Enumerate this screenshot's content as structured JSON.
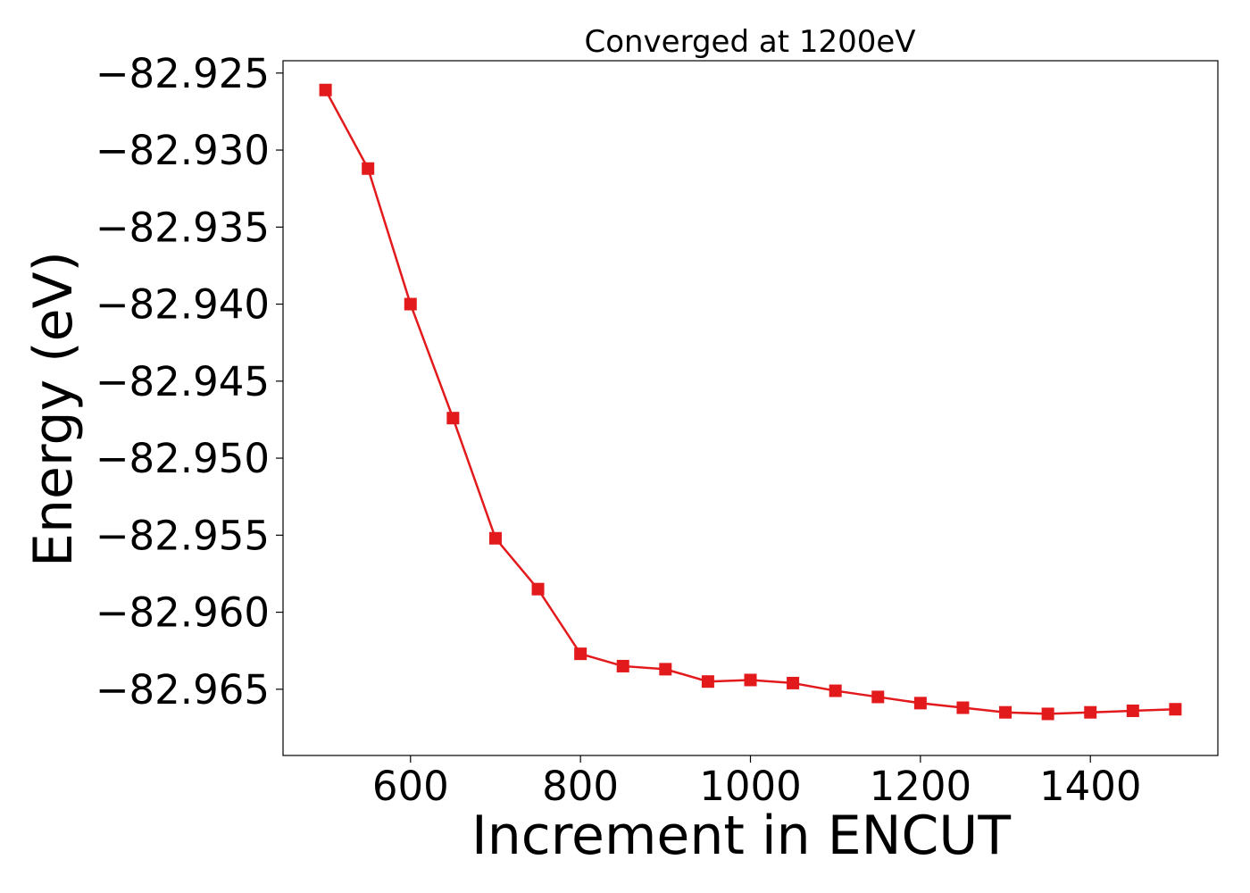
{
  "chart_data": {
    "type": "line",
    "title": "Converged at 1200eV",
    "xlabel": "Increment in ENCUT",
    "ylabel": "Energy (eV)",
    "xlim": [
      450,
      1550
    ],
    "ylim": [
      -82.9693,
      -82.9242
    ],
    "xticks": [
      600,
      800,
      1000,
      1200,
      1400
    ],
    "yticks": [
      -82.925,
      -82.93,
      -82.935,
      -82.94,
      -82.945,
      -82.95,
      -82.955,
      -82.96,
      -82.965
    ],
    "ytick_labels": [
      "−82.925",
      "−82.930",
      "−82.935",
      "−82.940",
      "−82.945",
      "−82.950",
      "−82.955",
      "−82.960",
      "−82.965"
    ],
    "grid": false,
    "series": [
      {
        "color": "#e31a1c",
        "marker": "square",
        "x": [
          500,
          550,
          600,
          650,
          700,
          750,
          800,
          850,
          900,
          950,
          1000,
          1050,
          1100,
          1150,
          1200,
          1250,
          1300,
          1350,
          1400,
          1450,
          1500
        ],
        "y": [
          -82.9261,
          -82.9312,
          -82.94,
          -82.9474,
          -82.9552,
          -82.9585,
          -82.9627,
          -82.9635,
          -82.9637,
          -82.9645,
          -82.9644,
          -82.9646,
          -82.9651,
          -82.9655,
          -82.9659,
          -82.9662,
          -82.9665,
          -82.9666,
          -82.9665,
          -82.9664,
          -82.9663
        ]
      }
    ]
  }
}
